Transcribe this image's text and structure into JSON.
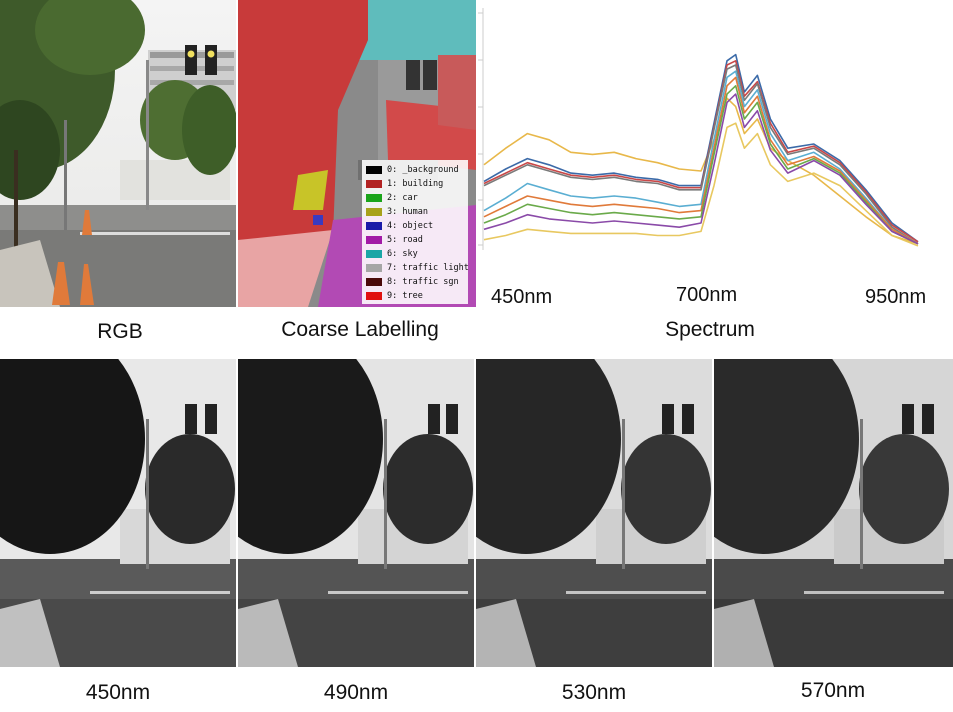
{
  "top_row": {
    "rgb_caption": "RGB",
    "coarse_caption": "Coarse Labelling",
    "spectrum_caption": "Spectrum"
  },
  "legend": [
    {
      "label": "0: _background",
      "color": "#000000"
    },
    {
      "label": "1: building",
      "color": "#b22222"
    },
    {
      "label": "2: car",
      "color": "#1aa41a"
    },
    {
      "label": "3: human",
      "color": "#a7a21a"
    },
    {
      "label": "4: object",
      "color": "#1a1aa8"
    },
    {
      "label": "5: road",
      "color": "#a21aa6"
    },
    {
      "label": "6: sky",
      "color": "#1aa6a6"
    },
    {
      "label": "7: traffic light",
      "color": "#a6a6a6"
    },
    {
      "label": "8: traffic sgn",
      "color": "#4a0a0a"
    },
    {
      "label": "9: tree",
      "color": "#e01010"
    }
  ],
  "spectrum_ticks": [
    "450nm",
    "700nm",
    "950nm"
  ],
  "bottom_captions": [
    "450nm",
    "490nm",
    "530nm",
    "570nm"
  ],
  "chart_data": {
    "type": "line",
    "x": [
      450,
      475,
      500,
      525,
      550,
      575,
      600,
      625,
      650,
      675,
      700,
      715,
      730,
      740,
      750,
      765,
      780,
      800,
      830,
      860,
      890,
      920,
      950
    ],
    "series": [
      {
        "color": "#e8b84a",
        "values": [
          0.4,
          0.48,
          0.55,
          0.52,
          0.46,
          0.45,
          0.46,
          0.43,
          0.41,
          0.38,
          0.37,
          0.52,
          0.72,
          0.68,
          0.55,
          0.62,
          0.48,
          0.42,
          0.35,
          0.25,
          0.15,
          0.06,
          0.02
        ]
      },
      {
        "color": "#3b6aa8",
        "values": [
          0.32,
          0.38,
          0.43,
          0.4,
          0.36,
          0.35,
          0.36,
          0.34,
          0.33,
          0.3,
          0.3,
          0.6,
          0.9,
          0.93,
          0.75,
          0.83,
          0.62,
          0.48,
          0.5,
          0.42,
          0.28,
          0.12,
          0.03
        ]
      },
      {
        "color": "#c94848",
        "values": [
          0.31,
          0.36,
          0.41,
          0.38,
          0.35,
          0.34,
          0.35,
          0.33,
          0.32,
          0.29,
          0.29,
          0.58,
          0.88,
          0.9,
          0.73,
          0.8,
          0.6,
          0.46,
          0.49,
          0.41,
          0.27,
          0.11,
          0.03
        ]
      },
      {
        "color": "#7a7a7a",
        "values": [
          0.3,
          0.35,
          0.4,
          0.37,
          0.34,
          0.33,
          0.34,
          0.32,
          0.31,
          0.28,
          0.28,
          0.57,
          0.86,
          0.88,
          0.71,
          0.79,
          0.58,
          0.45,
          0.48,
          0.4,
          0.26,
          0.1,
          0.02
        ]
      },
      {
        "color": "#5aaed2",
        "values": [
          0.18,
          0.24,
          0.31,
          0.28,
          0.25,
          0.24,
          0.25,
          0.24,
          0.22,
          0.2,
          0.21,
          0.52,
          0.82,
          0.85,
          0.68,
          0.76,
          0.55,
          0.42,
          0.46,
          0.38,
          0.24,
          0.09,
          0.02
        ]
      },
      {
        "color": "#e07a3a",
        "values": [
          0.15,
          0.2,
          0.25,
          0.23,
          0.21,
          0.2,
          0.21,
          0.2,
          0.19,
          0.17,
          0.18,
          0.48,
          0.78,
          0.82,
          0.65,
          0.73,
          0.52,
          0.4,
          0.44,
          0.37,
          0.23,
          0.09,
          0.02
        ]
      },
      {
        "color": "#6aaa4a",
        "values": [
          0.12,
          0.16,
          0.21,
          0.19,
          0.17,
          0.16,
          0.17,
          0.16,
          0.15,
          0.14,
          0.15,
          0.45,
          0.74,
          0.78,
          0.62,
          0.7,
          0.5,
          0.38,
          0.43,
          0.36,
          0.22,
          0.08,
          0.02
        ]
      },
      {
        "color": "#8a4aa8",
        "values": [
          0.09,
          0.12,
          0.16,
          0.14,
          0.13,
          0.12,
          0.13,
          0.12,
          0.11,
          0.1,
          0.12,
          0.4,
          0.7,
          0.74,
          0.58,
          0.66,
          0.47,
          0.36,
          0.42,
          0.35,
          0.21,
          0.08,
          0.02
        ]
      },
      {
        "color": "#e8c860",
        "values": [
          0.04,
          0.06,
          0.09,
          0.08,
          0.07,
          0.07,
          0.07,
          0.07,
          0.06,
          0.06,
          0.08,
          0.3,
          0.58,
          0.6,
          0.48,
          0.55,
          0.4,
          0.32,
          0.36,
          0.3,
          0.18,
          0.06,
          0.01
        ]
      }
    ],
    "xlabel": "",
    "ylabel": "",
    "grid": false
  }
}
